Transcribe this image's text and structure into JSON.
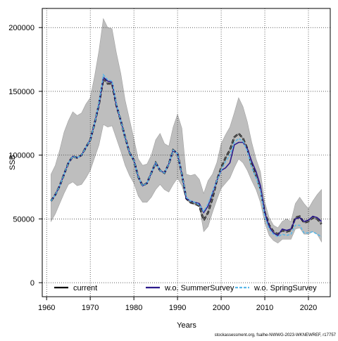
{
  "chart_data": {
    "type": "line",
    "title": "",
    "xlabel": "Years",
    "ylabel": "SSB",
    "xlim": [
      1959,
      2025
    ],
    "ylim": [
      -11000,
      215000
    ],
    "xticks": [
      1960,
      1970,
      1980,
      1990,
      2000,
      2010,
      2020
    ],
    "yticks": [
      0,
      50000,
      100000,
      150000,
      200000
    ],
    "grid": true,
    "legend_position": "bottom",
    "source_note": "stockassessment.org, fsalhe-NWWG-2023-WKNEWREF, r17757",
    "x": [
      1961,
      1962,
      1963,
      1964,
      1965,
      1966,
      1967,
      1968,
      1969,
      1970,
      1971,
      1972,
      1973,
      1974,
      1975,
      1976,
      1977,
      1978,
      1979,
      1980,
      1981,
      1982,
      1983,
      1984,
      1985,
      1986,
      1987,
      1988,
      1989,
      1990,
      1991,
      1992,
      1993,
      1994,
      1995,
      1996,
      1997,
      1998,
      1999,
      2000,
      2001,
      2002,
      2003,
      2004,
      2005,
      2006,
      2007,
      2008,
      2009,
      2010,
      2011,
      2012,
      2013,
      2014,
      2015,
      2016,
      2017,
      2018,
      2019,
      2020,
      2021,
      2022,
      2023
    ],
    "confidence_band": {
      "color": "#bebebe",
      "lower": [
        48000,
        54000,
        62000,
        70000,
        77000,
        79000,
        76000,
        77000,
        82000,
        88000,
        98000,
        108000,
        124000,
        122000,
        123000,
        113000,
        103000,
        92000,
        84000,
        78000,
        68000,
        63000,
        63000,
        67000,
        73000,
        77000,
        73000,
        71000,
        77000,
        82000,
        76000,
        65000,
        62000,
        61000,
        60000,
        40000,
        44000,
        55000,
        65000,
        74000,
        78000,
        82000,
        90000,
        97000,
        94000,
        88000,
        80000,
        73000,
        63000,
        47000,
        37000,
        33000,
        31000,
        34000,
        34000,
        34000,
        42000,
        43000,
        38000,
        38000,
        40000,
        38000,
        32000
      ],
      "upper": [
        85000,
        92000,
        104000,
        118000,
        127000,
        134000,
        131000,
        133000,
        140000,
        145000,
        162000,
        182000,
        207000,
        200000,
        199000,
        180000,
        164000,
        143000,
        128000,
        113000,
        97000,
        92000,
        93000,
        100000,
        112000,
        117000,
        109000,
        107000,
        122000,
        132000,
        121000,
        85000,
        84000,
        85000,
        81000,
        70000,
        80000,
        85000,
        94000,
        109000,
        116000,
        122000,
        133000,
        145000,
        138000,
        126000,
        110000,
        97000,
        87000,
        63000,
        51000,
        45000,
        43000,
        48000,
        50000,
        48000,
        62000,
        67000,
        62000,
        58000,
        64000,
        69000,
        73000
      ]
    },
    "series": [
      {
        "name": "current",
        "color": "#000000",
        "dash": "",
        "values": [
          64000,
          69000,
          76000,
          85000,
          94000,
          99000,
          98000,
          100000,
          106000,
          112000,
          125000,
          140000,
          160000,
          156000,
          156000,
          139000,
          127000,
          114000,
          102000,
          96000,
          83000,
          76000,
          78000,
          86000,
          94000,
          88000,
          86000,
          93000,
          104000,
          101000,
          85000,
          66000,
          63000,
          62000,
          60000,
          49000,
          55000,
          66000,
          80000,
          90000,
          98000,
          104000,
          114000,
          117000,
          113000,
          105000,
          92000,
          84000,
          74000,
          55000,
          45000,
          40000,
          38000,
          41000,
          40000,
          41000,
          51000,
          52000,
          47000,
          48000,
          51000,
          50000,
          46000
        ]
      },
      {
        "name": "w.o. SummerSurvey",
        "color": "#2c1a8c",
        "dash": "",
        "values": [
          64000,
          69000,
          76000,
          85000,
          94000,
          99000,
          98000,
          100000,
          106000,
          112000,
          125000,
          140000,
          161000,
          158000,
          157000,
          139000,
          127000,
          114000,
          102000,
          96000,
          83000,
          76000,
          78000,
          86000,
          94000,
          88000,
          86000,
          93000,
          104000,
          101000,
          85000,
          66000,
          64000,
          63000,
          62000,
          55000,
          60000,
          70000,
          80000,
          88000,
          90000,
          94000,
          108000,
          110000,
          110000,
          105000,
          95000,
          87000,
          76000,
          55000,
          44000,
          39000,
          37000,
          42000,
          41000,
          42000,
          50000,
          51000,
          48000,
          49000,
          52000,
          51000,
          48000
        ]
      },
      {
        "name": "w.o. SpringSurvey",
        "color": "#5bb8e8",
        "dash": "4 2",
        "values": [
          64000,
          69000,
          76000,
          85000,
          94000,
          99000,
          98000,
          100000,
          106000,
          112000,
          125000,
          141000,
          163000,
          159000,
          158000,
          140000,
          127000,
          114000,
          102000,
          96000,
          83000,
          76000,
          78000,
          86000,
          94000,
          88000,
          86000,
          93000,
          104000,
          101000,
          85000,
          67000,
          64000,
          63000,
          61000,
          56000,
          62000,
          71000,
          80000,
          88000,
          95000,
          100000,
          110000,
          113000,
          111000,
          103000,
          90000,
          82000,
          72000,
          52000,
          42000,
          38000,
          36000,
          38000,
          37000,
          38000,
          45000,
          45000,
          39000,
          39000,
          40000,
          38000,
          36000
        ]
      }
    ]
  }
}
